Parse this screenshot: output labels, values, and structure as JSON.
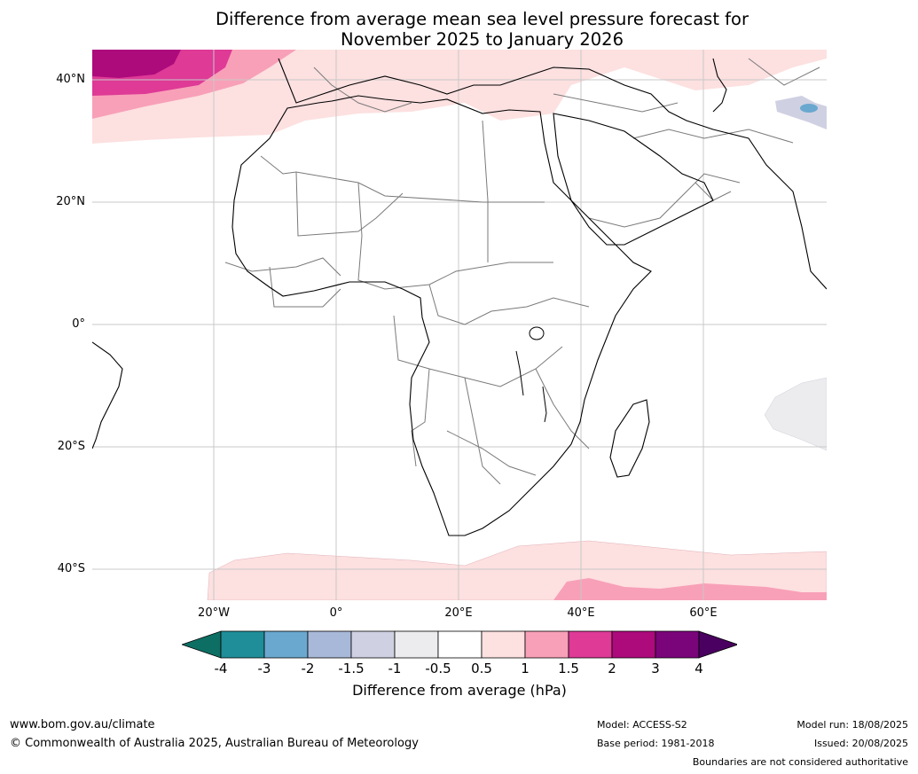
{
  "title_line1": "Difference from average mean sea level pressure forecast for",
  "title_line2": "November 2025 to January 2026",
  "lat_labels": [
    "40°N",
    "20°N",
    "0°",
    "20°S",
    "40°S"
  ],
  "lon_labels": [
    "20°W",
    "0°",
    "20°E",
    "40°E",
    "60°E"
  ],
  "colorbar": {
    "title": "Difference from average (hPa)",
    "ticks": [
      "-4",
      "-3",
      "-2",
      "-1.5",
      "-1",
      "-0.5",
      "0.5",
      "1",
      "1.5",
      "2",
      "3",
      "4"
    ],
    "colors": [
      "#0d6f63",
      "#1f8e98",
      "#6aa8cf",
      "#a8b8d8",
      "#cfd0e2",
      "#ecebee",
      "#ffffff",
      "#fde0e0",
      "#f8a0b8",
      "#de3a96",
      "#ad0a7c",
      "#7a047a",
      "#4a0060"
    ]
  },
  "footer": {
    "website": "www.bom.gov.au/climate",
    "copyright": "© Commonwealth of Australia 2025, Australian Bureau of Meteorology",
    "model": "Model: ACCESS-S2",
    "base_period": "Base period: 1981-2018",
    "model_run": "Model run: 18/08/2025",
    "issued": "Issued: 20/08/2025",
    "disclaimer": "Boundaries are not considered authoritative"
  }
}
